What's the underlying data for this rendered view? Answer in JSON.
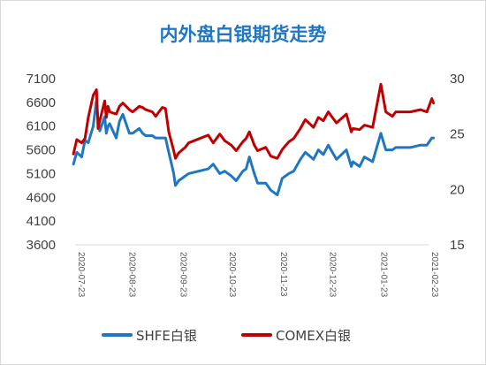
{
  "title": "内外盘白银期货走势",
  "chart_data": {
    "type": "line",
    "title": "内外盘白银期货走势",
    "xlabel": "",
    "ylabel": "",
    "x_ticks": [
      "2020-07-23",
      "2020-08-23",
      "2020-09-23",
      "2020-10-23",
      "2020-11-23",
      "2020-12-23",
      "2021-01-23",
      "2021-02-23"
    ],
    "y_left": {
      "ticks": [
        "3600",
        "4100",
        "4600",
        "5100",
        "5600",
        "6100",
        "6600",
        "7100"
      ],
      "range": [
        3600,
        7100
      ]
    },
    "y_right": {
      "ticks": [
        "15",
        "20",
        "25",
        "30"
      ],
      "range": [
        15,
        30
      ]
    },
    "legend_position": "bottom",
    "grid": false,
    "series": [
      {
        "name": "SHFE白银",
        "axis": "left",
        "color": "#1f77c4",
        "x": [
          "2020-07-22",
          "2020-07-24",
          "2020-07-27",
          "2020-07-29",
          "2020-07-31",
          "2020-08-03",
          "2020-08-05",
          "2020-08-06",
          "2020-08-07",
          "2020-08-10",
          "2020-08-11",
          "2020-08-12",
          "2020-08-13",
          "2020-08-17",
          "2020-08-19",
          "2020-08-21",
          "2020-08-25",
          "2020-08-27",
          "2020-08-31",
          "2020-09-02",
          "2020-09-04",
          "2020-09-08",
          "2020-09-10",
          "2020-09-14",
          "2020-09-16",
          "2020-09-18",
          "2020-09-21",
          "2020-09-22",
          "2020-09-24",
          "2020-09-28",
          "2020-09-30",
          "2020-10-12",
          "2020-10-15",
          "2020-10-19",
          "2020-10-22",
          "2020-10-26",
          "2020-10-29",
          "2020-11-02",
          "2020-11-04",
          "2020-11-06",
          "2020-11-09",
          "2020-11-11",
          "2020-11-16",
          "2020-11-19",
          "2020-11-23",
          "2020-11-26",
          "2020-11-30",
          "2020-12-03",
          "2020-12-07",
          "2020-12-10",
          "2020-12-15",
          "2020-12-18",
          "2020-12-21",
          "2020-12-24",
          "2020-12-29",
          "2021-01-04",
          "2021-01-07",
          "2021-01-08",
          "2021-01-12",
          "2021-01-15",
          "2021-01-20",
          "2021-01-25",
          "2021-01-28",
          "2021-02-01",
          "2021-02-03",
          "2021-02-08",
          "2021-02-12",
          "2021-02-18",
          "2021-02-22",
          "2021-02-25",
          "2021-02-26"
        ],
        "values": [
          5300,
          5550,
          5450,
          5800,
          5750,
          6100,
          6650,
          6200,
          6000,
          6300,
          5950,
          6100,
          6150,
          5850,
          6200,
          6350,
          5950,
          5950,
          6050,
          5950,
          5900,
          5900,
          5850,
          5850,
          5850,
          5550,
          5100,
          4850,
          4950,
          5050,
          5100,
          5200,
          5300,
          5100,
          5150,
          5050,
          4950,
          5150,
          5200,
          5450,
          5100,
          4900,
          4900,
          4750,
          4650,
          5000,
          5100,
          5150,
          5400,
          5550,
          5400,
          5600,
          5500,
          5700,
          5400,
          5600,
          5250,
          5350,
          5250,
          5450,
          5350,
          5950,
          5600,
          5600,
          5650,
          5650,
          5650,
          5700,
          5700,
          5850,
          5850
        ]
      },
      {
        "name": "COMEX白银",
        "axis": "right",
        "color": "#c00000",
        "x": [
          "2020-07-22",
          "2020-07-24",
          "2020-07-27",
          "2020-07-29",
          "2020-07-31",
          "2020-08-03",
          "2020-08-05",
          "2020-08-06",
          "2020-08-07",
          "2020-08-10",
          "2020-08-11",
          "2020-08-12",
          "2020-08-13",
          "2020-08-17",
          "2020-08-19",
          "2020-08-21",
          "2020-08-25",
          "2020-08-27",
          "2020-08-31",
          "2020-09-02",
          "2020-09-04",
          "2020-09-08",
          "2020-09-10",
          "2020-09-14",
          "2020-09-16",
          "2020-09-18",
          "2020-09-21",
          "2020-09-22",
          "2020-09-24",
          "2020-09-28",
          "2020-09-30",
          "2020-10-12",
          "2020-10-15",
          "2020-10-19",
          "2020-10-22",
          "2020-10-26",
          "2020-10-29",
          "2020-11-02",
          "2020-11-04",
          "2020-11-06",
          "2020-11-09",
          "2020-11-11",
          "2020-11-16",
          "2020-11-19",
          "2020-11-23",
          "2020-11-26",
          "2020-11-30",
          "2020-12-03",
          "2020-12-07",
          "2020-12-10",
          "2020-12-15",
          "2020-12-18",
          "2020-12-21",
          "2020-12-24",
          "2020-12-29",
          "2021-01-04",
          "2021-01-07",
          "2021-01-08",
          "2021-01-12",
          "2021-01-15",
          "2021-01-20",
          "2021-01-25",
          "2021-01-28",
          "2021-02-01",
          "2021-02-03",
          "2021-02-08",
          "2021-02-12",
          "2021-02-18",
          "2021-02-22",
          "2021-02-25",
          "2021-02-26"
        ],
        "values": [
          23.2,
          24.5,
          24.2,
          24.6,
          26.5,
          28.5,
          29.0,
          25.5,
          26.2,
          28.0,
          26.5,
          27.5,
          27.0,
          26.8,
          27.5,
          27.8,
          27.2,
          27.0,
          27.5,
          27.4,
          27.2,
          27.0,
          26.6,
          27.4,
          27.3,
          25.2,
          23.5,
          22.8,
          23.3,
          23.8,
          24.2,
          24.9,
          24.2,
          25.0,
          24.4,
          24.0,
          23.5,
          24.3,
          24.6,
          25.2,
          24.0,
          23.5,
          23.8,
          23.0,
          22.8,
          23.6,
          24.3,
          24.6,
          25.5,
          26.3,
          25.6,
          26.5,
          26.2,
          27.0,
          26.0,
          26.8,
          25.2,
          25.5,
          25.4,
          25.8,
          25.6,
          29.5,
          27.0,
          26.6,
          27.0,
          27.0,
          27.0,
          27.2,
          27.0,
          28.2,
          27.8
        ]
      }
    ]
  },
  "legend": [
    {
      "label": "SHFE白银",
      "color": "#1f77c4"
    },
    {
      "label": "COMEX白银",
      "color": "#c00000"
    }
  ]
}
